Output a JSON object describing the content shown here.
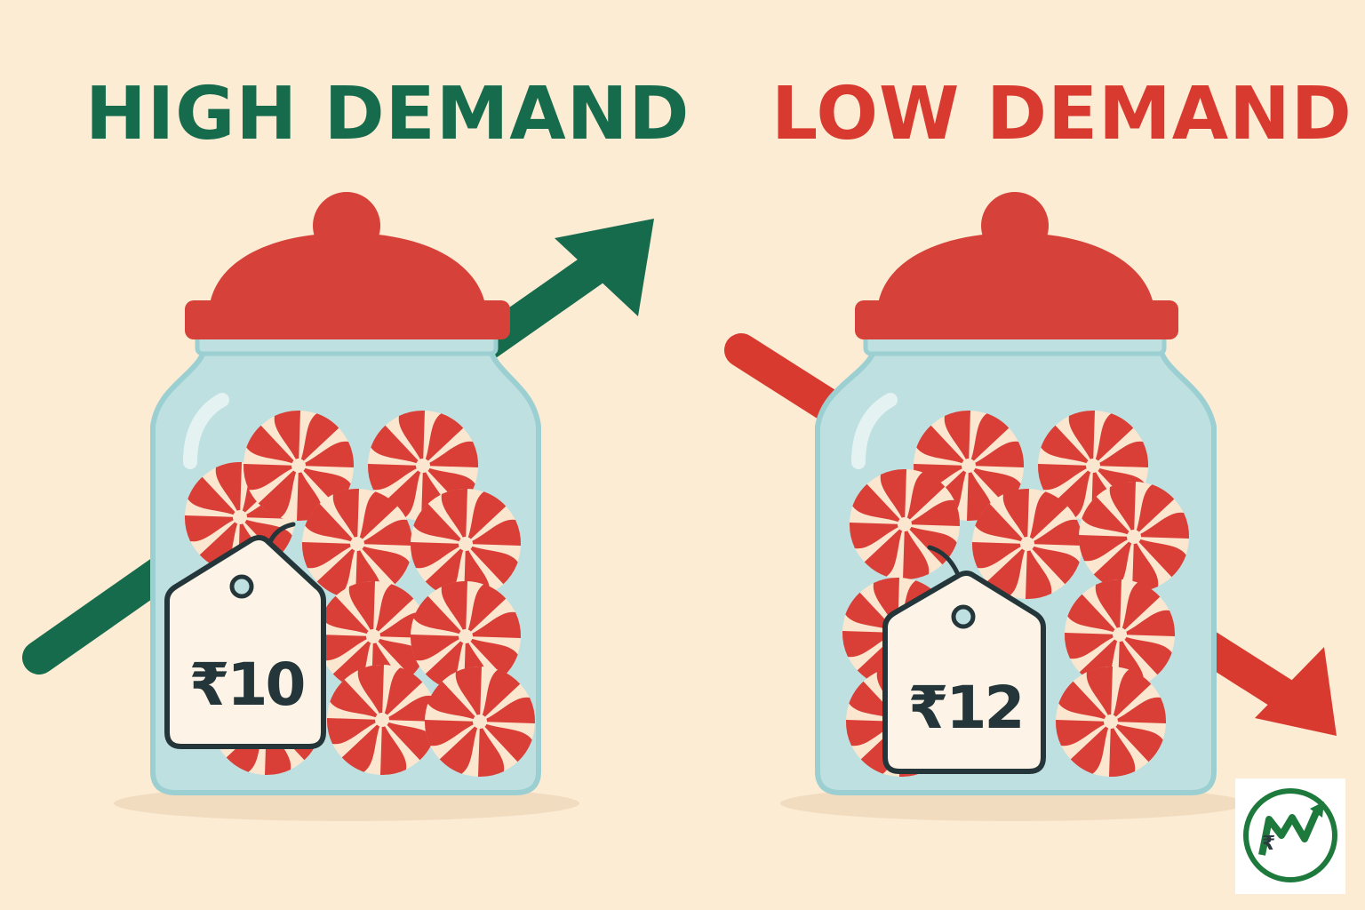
{
  "colors": {
    "background": "#fcecd4",
    "high_green": "#176b4d",
    "low_red": "#d93a30",
    "lid_red": "#d6423a",
    "jar_glass": "#bfe0e0",
    "jar_outline": "#9bcfd2",
    "candy_red": "#d93f36",
    "candy_cream": "#fbe6d0",
    "tag_fill": "#fdf4e7",
    "tag_ink": "#24363a"
  },
  "left_panel": {
    "heading": "HIGH DEMAND",
    "price": "₹10",
    "trend_arrow_icon": "arrow-up-right-icon"
  },
  "right_panel": {
    "heading": "LOW DEMAND",
    "price": "₹12",
    "trend_arrow_icon": "arrow-down-right-icon"
  },
  "logo": {
    "icon": "rupee-growth-logo-icon"
  }
}
